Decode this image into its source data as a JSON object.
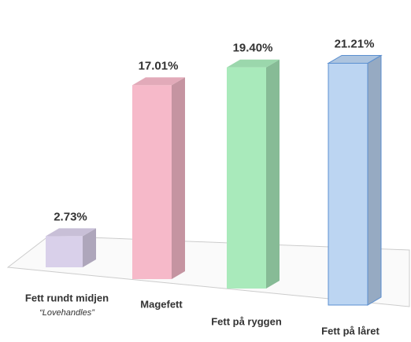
{
  "chart_data": {
    "type": "bar3d",
    "categories": [
      "Fett rundt midjen",
      "Magefett",
      "Fett på ryggen",
      "Fett på låret"
    ],
    "category_subtitles": [
      "“Lovehandles”",
      null,
      null,
      null
    ],
    "values": [
      2.73,
      17.01,
      19.4,
      21.21
    ],
    "value_labels": [
      "2.73%",
      "17.01%",
      "19.40%",
      "21.21%"
    ],
    "colors": [
      "#d9d0ea",
      "#f6b9c9",
      "#a9eabb",
      "#bcd5f2"
    ]
  }
}
